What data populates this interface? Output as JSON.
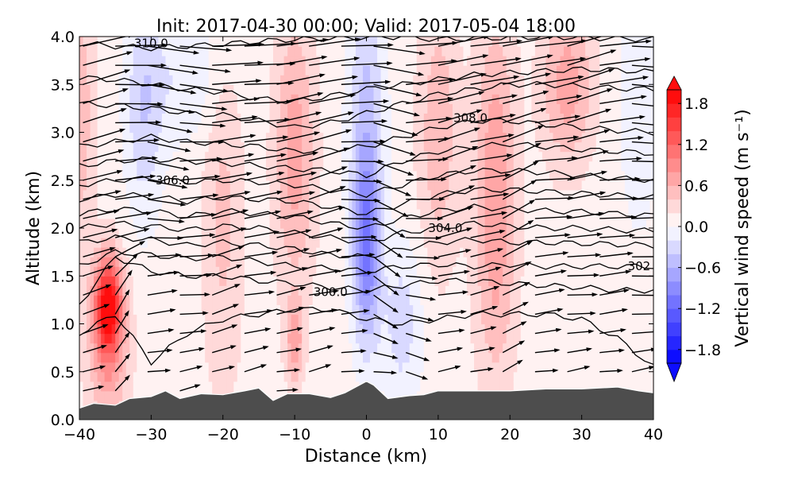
{
  "chart_data": {
    "type": "heatmap",
    "title": "Init: 2017-04-30 00:00; Valid: 2017-05-04 18:00",
    "xlabel": "Distance (km)",
    "ylabel": "Altitude (km)",
    "xlim": [
      -40,
      40
    ],
    "ylim": [
      0,
      4
    ],
    "xticks": [
      -40,
      -30,
      -20,
      -10,
      0,
      10,
      20,
      30,
      40
    ],
    "xtick_labels": [
      "−40",
      "−30",
      "−20",
      "−10",
      "0",
      "10",
      "20",
      "30",
      "40"
    ],
    "yticks": [
      0,
      0.5,
      1,
      1.5,
      2,
      2.5,
      3,
      3.5,
      4
    ],
    "ytick_labels": [
      "0.0",
      "0.5",
      "1.0",
      "1.5",
      "2.0",
      "2.5",
      "3.0",
      "3.5",
      "4.0"
    ],
    "colorbar": {
      "label": "Vertical wind speed (m s⁻¹)",
      "range": [
        -2,
        2
      ],
      "step": 0.2,
      "extend": "both",
      "colormap": "bwr",
      "ticks": [
        1.8,
        1.2,
        0.6,
        0.0,
        -0.6,
        -1.2,
        -1.8
      ],
      "tick_labels": [
        "1.8",
        "1.2",
        "0.6",
        "0.0",
        "−0.6",
        "−1.2",
        "−1.8"
      ]
    },
    "vertical_wind_features": [
      {
        "x": -36,
        "z": 1.2,
        "w": 1.6,
        "sx": 1.3,
        "sz": 0.35
      },
      {
        "x": -36,
        "z": 0.7,
        "w": 0.6,
        "sx": 2.0,
        "sz": 0.6
      },
      {
        "x": 0,
        "z": 1.8,
        "w": -1.0,
        "sx": 1.3,
        "sz": 0.7
      },
      {
        "x": 0,
        "z": 3.3,
        "w": -0.5,
        "sx": 1.8,
        "sz": 1.2
      },
      {
        "x": -31,
        "z": 3.2,
        "w": -0.45,
        "sx": 1.8,
        "sz": 0.8
      },
      {
        "x": -10,
        "z": 2.8,
        "w": 0.6,
        "sx": 2.0,
        "sz": 1.0
      },
      {
        "x": -10,
        "z": 0.8,
        "w": 0.6,
        "sx": 0.9,
        "sz": 0.3
      },
      {
        "x": 18,
        "z": 2.3,
        "w": 0.7,
        "sx": 2.0,
        "sz": 1.3
      },
      {
        "x": 28,
        "z": 3.5,
        "w": 0.6,
        "sx": 2.5,
        "sz": 0.6
      },
      {
        "x": 10,
        "z": 3.0,
        "w": 0.45,
        "sx": 2.0,
        "sz": 1.0
      },
      {
        "x": -20,
        "z": 2.2,
        "w": 0.35,
        "sx": 2.0,
        "sz": 1.4
      },
      {
        "x": 5,
        "z": 1.0,
        "w": -0.4,
        "sx": 2.0,
        "sz": 0.6
      },
      {
        "x": -40,
        "z": 3.2,
        "w": 0.45,
        "sx": 1.5,
        "sz": 1.0
      },
      {
        "x": -25,
        "z": 3.6,
        "w": -0.3,
        "sx": 4.0,
        "sz": 0.5
      },
      {
        "x": 38,
        "z": 3.3,
        "w": -0.25,
        "sx": 2.0,
        "sz": 1.0
      }
    ],
    "background_w": 0.1,
    "terrain": {
      "x": [
        -40,
        -38,
        -35,
        -33,
        -30,
        -28,
        -26,
        -23,
        -20,
        -17,
        -15,
        -13,
        -11,
        -8,
        -5,
        -3,
        0,
        1,
        3,
        6,
        8,
        10,
        13,
        16,
        20,
        25,
        30,
        35,
        38,
        40
      ],
      "z": [
        0.12,
        0.17,
        0.15,
        0.22,
        0.24,
        0.3,
        0.22,
        0.27,
        0.26,
        0.3,
        0.33,
        0.2,
        0.27,
        0.27,
        0.23,
        0.28,
        0.4,
        0.36,
        0.22,
        0.25,
        0.26,
        0.3,
        0.3,
        0.3,
        0.3,
        0.32,
        0.32,
        0.34,
        0.3,
        0.28
      ]
    },
    "theta_contours": {
      "x": [
        -40,
        -35,
        -30,
        -25,
        -20,
        -15,
        -10,
        -5,
        0,
        5,
        10,
        15,
        20,
        25,
        30,
        35,
        40
      ],
      "lines": [
        {
          "level": 310.0,
          "label": "310.0",
          "z": [
            3.93,
            3.9,
            3.88,
            3.9,
            3.92,
            3.95,
            3.97,
            3.98,
            3.99,
            4.0,
            3.97,
            3.98,
            3.99,
            4.0,
            3.99,
            3.98,
            3.97
          ]
        },
        {
          "level": 309.5,
          "z": [
            3.57,
            3.55,
            3.5,
            3.45,
            3.42,
            3.35,
            3.32,
            3.38,
            3.45,
            3.5,
            3.55,
            3.6,
            3.62,
            3.64,
            3.66,
            3.65,
            3.63
          ]
        },
        {
          "level": 309.0,
          "z": [
            3.3,
            3.28,
            3.25,
            3.2,
            3.18,
            3.12,
            3.05,
            3.1,
            3.2,
            3.3,
            3.4,
            3.45,
            3.5,
            3.5,
            3.48,
            3.46,
            3.45
          ]
        },
        {
          "level": 308.0,
          "label": "308.0",
          "z": [
            2.85,
            2.9,
            2.95,
            2.9,
            2.88,
            2.85,
            2.8,
            2.82,
            2.85,
            2.95,
            3.05,
            3.12,
            3.12,
            3.08,
            3.05,
            3.02,
            3.0
          ]
        },
        {
          "level": 307.0,
          "z": [
            2.65,
            2.7,
            2.72,
            2.7,
            2.68,
            2.65,
            2.62,
            2.6,
            2.55,
            2.7,
            2.8,
            2.85,
            2.88,
            2.85,
            2.82,
            2.8,
            2.78
          ]
        },
        {
          "level": 306.0,
          "label": "306.0",
          "z": [
            2.45,
            2.5,
            2.52,
            2.48,
            2.5,
            2.48,
            2.45,
            2.4,
            2.35,
            2.45,
            2.55,
            2.6,
            2.6,
            2.58,
            2.55,
            2.52,
            2.5
          ]
        },
        {
          "level": 305.5,
          "z": [
            2.3,
            2.35,
            2.33,
            2.28,
            2.32,
            2.3,
            2.28,
            2.22,
            2.15,
            2.25,
            2.35,
            2.4,
            2.4,
            2.38,
            2.36,
            2.34,
            2.32
          ]
        },
        {
          "level": 305.0,
          "z": [
            2.15,
            2.2,
            2.18,
            2.12,
            2.18,
            2.15,
            2.12,
            2.05,
            2.0,
            2.1,
            2.18,
            2.22,
            2.2,
            2.18,
            2.17,
            2.15,
            2.13
          ]
        },
        {
          "level": 304.0,
          "label": "304.0",
          "z": [
            2.0,
            2.05,
            2.02,
            1.98,
            2.02,
            2.0,
            1.95,
            1.9,
            1.85,
            1.95,
            2.0,
            2.05,
            2.02,
            2.0,
            2.0,
            1.98,
            1.97
          ]
        },
        {
          "level": 303.0,
          "z": [
            1.85,
            1.9,
            1.88,
            1.82,
            1.85,
            1.82,
            1.78,
            1.72,
            1.7,
            1.78,
            1.85,
            1.88,
            1.85,
            1.85,
            1.84,
            1.83,
            1.82
          ]
        },
        {
          "level": 302.0,
          "label": "302",
          "z": [
            1.6,
            1.75,
            1.72,
            1.68,
            1.7,
            1.65,
            1.6,
            1.58,
            1.55,
            1.6,
            1.62,
            1.6,
            1.62,
            1.6,
            1.6,
            1.6,
            1.6
          ]
        },
        {
          "level": 301.0,
          "z": [
            1.2,
            1.7,
            1.55,
            1.5,
            1.5,
            1.45,
            1.42,
            1.38,
            1.35,
            1.4,
            1.45,
            1.45,
            1.42,
            1.4,
            1.38,
            1.35,
            1.35
          ]
        },
        {
          "level": 300.0,
          "label": "300.0",
          "z": [
            0.9,
            1.1,
            0.6,
            0.9,
            1.05,
            1.1,
            1.15,
            1.15,
            1.05,
            1.0,
            1.05,
            1.1,
            1.1,
            1.1,
            1.05,
            0.85,
            0.55
          ]
        }
      ]
    },
    "wind_profile": {
      "z": [
        0.3,
        0.8,
        1.3,
        1.8,
        2.3,
        2.8,
        3.3,
        3.8
      ],
      "u": [
        3,
        4,
        5,
        6,
        7,
        8,
        9,
        10
      ]
    }
  }
}
